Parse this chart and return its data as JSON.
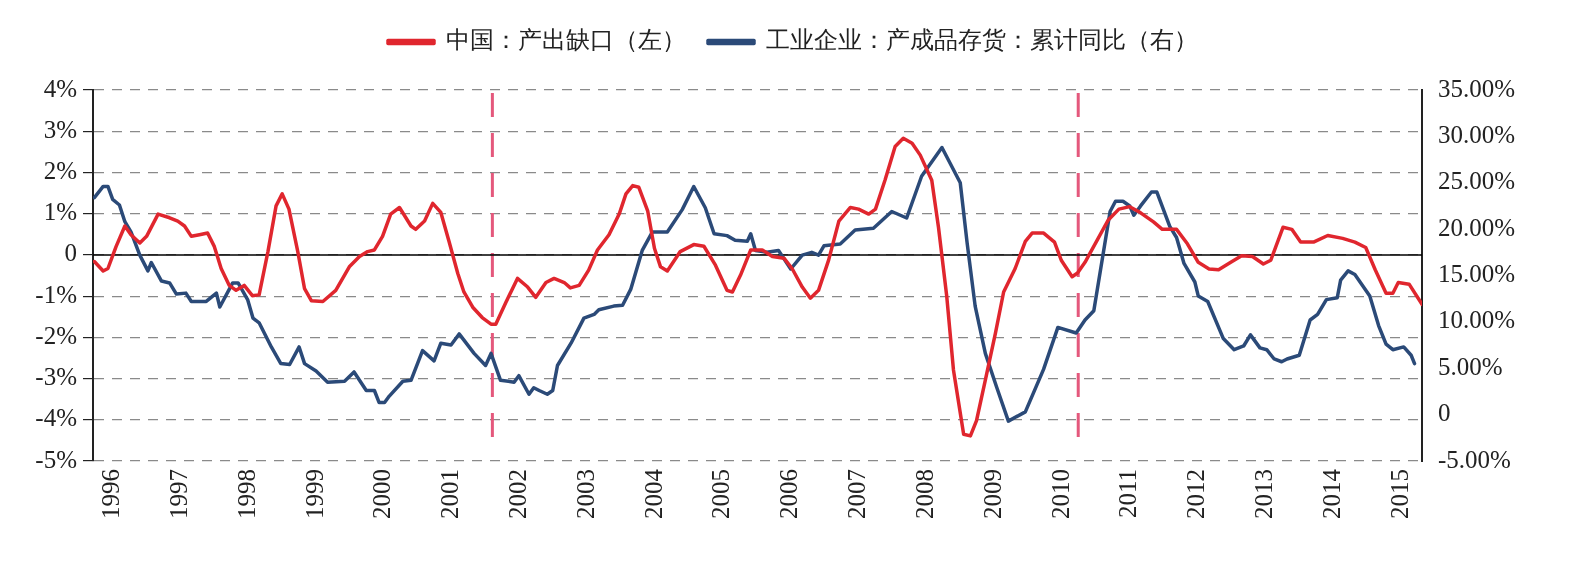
{
  "chart_data": {
    "type": "line",
    "legend": "top",
    "grid": "y",
    "marker": "none",
    "line_style": "solid",
    "xlim": [
      1995.71,
      2015.31
    ],
    "xticks": [
      1996,
      1997,
      1998,
      1999,
      2000,
      2001,
      2002,
      2003,
      2004,
      2005,
      2006,
      2007,
      2008,
      2009,
      2010,
      2011,
      2012,
      2013,
      2014,
      2015
    ],
    "ylim": [
      -5,
      4
    ],
    "yticks": [
      {
        "value": -5,
        "label": "-5%"
      },
      {
        "value": -4,
        "label": "-4%"
      },
      {
        "value": -3,
        "label": "-3%"
      },
      {
        "value": -2,
        "label": "-2%"
      },
      {
        "value": -1,
        "label": "-1%"
      },
      0,
      {
        "value": 1,
        "label": "1%"
      },
      {
        "value": 2,
        "label": "2%"
      },
      {
        "value": 3,
        "label": "3%"
      },
      {
        "value": 4,
        "label": "4%"
      }
    ],
    "y2lim": [
      -5,
      35
    ],
    "y2ticks": [
      {
        "value": -5,
        "label": "-5.00%"
      },
      0,
      {
        "value": 5,
        "label": "5.00%"
      },
      {
        "value": 10,
        "label": "10.00%"
      },
      {
        "value": 15,
        "label": "15.00%"
      },
      {
        "value": 20,
        "label": "20.00%"
      },
      {
        "value": 25,
        "label": "25.00%"
      },
      {
        "value": 30,
        "label": "30.00%"
      },
      {
        "value": 35,
        "label": "35.00%"
      }
    ],
    "ref_lines": [
      {
        "axis": "x",
        "value": 2001.6,
        "color": "#e4587c",
        "line_style": "dashed"
      },
      {
        "axis": "x",
        "value": 2010.24,
        "color": "#e4587c",
        "line_style": "dashed"
      },
      {
        "axis": "y",
        "value": 0,
        "color": "#000000",
        "line_style": "solid"
      }
    ],
    "series": [
      {
        "name": "中国：产出缺口（左）",
        "color": "#e0262e",
        "x": [
          1995.73,
          1995.86,
          1995.93,
          1996.05,
          1996.18,
          1996.27,
          1996.4,
          1996.5,
          1996.67,
          1996.84,
          1996.96,
          1997.06,
          1997.16,
          1997.28,
          1997.4,
          1997.5,
          1997.6,
          1997.72,
          1997.82,
          1997.94,
          1998.06,
          1998.16,
          1998.29,
          1998.41,
          1998.5,
          1998.6,
          1998.73,
          1998.83,
          1998.93,
          1999.1,
          1999.29,
          1999.49,
          1999.64,
          1999.76,
          1999.86,
          1999.98,
          2000.1,
          2000.23,
          2000.4,
          2000.47,
          2000.6,
          2000.72,
          2000.84,
          2000.96,
          2001.09,
          2001.18,
          2001.31,
          2001.45,
          2001.58,
          2001.65,
          2001.8,
          2001.97,
          2002.12,
          2002.24,
          2002.39,
          2002.51,
          2002.66,
          2002.75,
          2002.88,
          2003.02,
          2003.15,
          2003.32,
          2003.47,
          2003.57,
          2003.67,
          2003.76,
          2003.89,
          2003.99,
          2004.08,
          2004.18,
          2004.37,
          2004.57,
          2004.72,
          2004.89,
          2005.06,
          2005.14,
          2005.26,
          2005.41,
          2005.58,
          2005.73,
          2005.9,
          2006.02,
          2006.17,
          2006.29,
          2006.41,
          2006.56,
          2006.71,
          2006.88,
          2007.0,
          2007.15,
          2007.25,
          2007.39,
          2007.54,
          2007.66,
          2007.79,
          2007.91,
          2008.08,
          2008.18,
          2008.3,
          2008.4,
          2008.55,
          2008.65,
          2008.74,
          2008.87,
          2009.02,
          2009.14,
          2009.31,
          2009.46,
          2009.56,
          2009.73,
          2009.89,
          2009.99,
          2010.15,
          2010.23,
          2010.34,
          2010.52,
          2010.68,
          2010.84,
          2011.0,
          2011.16,
          2011.35,
          2011.48,
          2011.69,
          2011.85,
          2012.01,
          2012.17,
          2012.31,
          2012.49,
          2012.65,
          2012.81,
          2012.97,
          2013.08,
          2013.26,
          2013.39,
          2013.52,
          2013.71,
          2013.92,
          2014.14,
          2014.32,
          2014.48,
          2014.62,
          2014.78,
          2014.88,
          2014.96,
          2015.12,
          2015.31
        ],
        "values": [
          -0.16,
          -0.39,
          -0.33,
          0.2,
          0.7,
          0.49,
          0.29,
          0.45,
          0.99,
          0.9,
          0.82,
          0.7,
          0.45,
          0.49,
          0.53,
          0.2,
          -0.33,
          -0.74,
          -0.86,
          -0.74,
          -0.99,
          -0.97,
          0.08,
          1.19,
          1.48,
          1.11,
          0.08,
          -0.82,
          -1.11,
          -1.13,
          -0.86,
          -0.29,
          -0.04,
          0.08,
          0.12,
          0.45,
          0.99,
          1.15,
          0.7,
          0.62,
          0.82,
          1.25,
          1.03,
          0.33,
          -0.45,
          -0.9,
          -1.27,
          -1.52,
          -1.68,
          -1.68,
          -1.15,
          -0.57,
          -0.78,
          -1.03,
          -0.67,
          -0.57,
          -0.67,
          -0.8,
          -0.74,
          -0.37,
          0.12,
          0.49,
          0.99,
          1.48,
          1.68,
          1.64,
          1.07,
          0.16,
          -0.29,
          -0.39,
          0.08,
          0.25,
          0.21,
          -0.25,
          -0.86,
          -0.9,
          -0.49,
          0.12,
          0.12,
          -0.04,
          -0.08,
          -0.33,
          -0.78,
          -1.05,
          -0.86,
          -0.12,
          0.82,
          1.15,
          1.11,
          0.99,
          1.11,
          1.81,
          2.63,
          2.83,
          2.71,
          2.42,
          1.81,
          0.66,
          -0.99,
          -2.79,
          -4.35,
          -4.39,
          -4.02,
          -3.04,
          -1.89,
          -0.9,
          -0.33,
          0.33,
          0.53,
          0.53,
          0.31,
          -0.13,
          -0.53,
          -0.44,
          -0.18,
          0.36,
          0.84,
          1.11,
          1.17,
          1.02,
          0.8,
          0.62,
          0.62,
          0.27,
          -0.18,
          -0.34,
          -0.36,
          -0.18,
          -0.02,
          -0.04,
          -0.22,
          -0.13,
          0.67,
          0.62,
          0.31,
          0.31,
          0.47,
          0.4,
          0.31,
          0.18,
          -0.36,
          -0.93,
          -0.93,
          -0.67,
          -0.71,
          -1.2
        ]
      },
      {
        "name": "工业企业：产成品存货：累计同比（右）",
        "color": "#2b4a78",
        "axis": "y2",
        "x": [
          1995.73,
          1995.86,
          1995.93,
          1996.0,
          1996.1,
          1996.18,
          1996.27,
          1996.4,
          1996.52,
          1996.57,
          1996.72,
          1996.84,
          1996.94,
          1997.08,
          1997.16,
          1997.38,
          1997.53,
          1997.58,
          1997.77,
          1997.85,
          1997.99,
          1998.07,
          1998.16,
          1998.34,
          1998.48,
          1998.61,
          1998.75,
          1998.83,
          1999.0,
          1999.17,
          1999.42,
          1999.56,
          1999.74,
          1999.86,
          1999.93,
          2000.01,
          2000.08,
          2000.28,
          2000.4,
          2000.57,
          2000.74,
          2000.84,
          2000.99,
          2001.11,
          2001.33,
          2001.5,
          2001.58,
          2001.72,
          2001.92,
          2001.99,
          2002.14,
          2002.21,
          2002.29,
          2002.41,
          2002.49,
          2002.56,
          2002.76,
          2002.95,
          2003.1,
          2003.17,
          2003.39,
          2003.52,
          2003.64,
          2003.81,
          2003.96,
          2004.18,
          2004.4,
          2004.57,
          2004.74,
          2004.87,
          2005.06,
          2005.18,
          2005.36,
          2005.41,
          2005.48,
          2005.65,
          2005.82,
          2006.0,
          2006.17,
          2006.31,
          2006.41,
          2006.49,
          2006.73,
          2006.95,
          2007.22,
          2007.49,
          2007.71,
          2007.93,
          2008.23,
          2008.5,
          2008.6,
          2008.72,
          2008.87,
          2009.04,
          2009.21,
          2009.46,
          2009.73,
          2009.94,
          2010.21,
          2010.34,
          2010.47,
          2010.71,
          2010.79,
          2010.9,
          2011.0,
          2011.06,
          2011.16,
          2011.32,
          2011.4,
          2011.59,
          2011.69,
          2011.8,
          2011.96,
          2012.01,
          2012.15,
          2012.38,
          2012.54,
          2012.68,
          2012.78,
          2012.92,
          2013.02,
          2013.13,
          2013.24,
          2013.32,
          2013.5,
          2013.66,
          2013.77,
          2013.9,
          2014.06,
          2014.11,
          2014.22,
          2014.32,
          2014.54,
          2014.67,
          2014.78,
          2014.88,
          2015.04,
          2015.15,
          2015.2
        ],
        "values": [
          23.4,
          24.6,
          24.6,
          23.2,
          22.6,
          20.8,
          19.7,
          17.2,
          15.5,
          16.4,
          14.4,
          14.2,
          13.0,
          13.1,
          12.2,
          12.2,
          13.1,
          11.6,
          14.2,
          14.2,
          12.4,
          10.4,
          9.9,
          7.3,
          5.5,
          5.4,
          7.3,
          5.5,
          4.7,
          3.5,
          3.6,
          4.6,
          2.6,
          2.6,
          1.3,
          1.3,
          2.0,
          3.6,
          3.7,
          6.9,
          5.8,
          7.7,
          7.5,
          8.7,
          6.6,
          5.3,
          6.6,
          3.7,
          3.5,
          4.2,
          2.2,
          2.9,
          2.6,
          2.2,
          2.6,
          5.3,
          7.7,
          10.4,
          10.8,
          11.3,
          11.7,
          11.8,
          13.5,
          17.7,
          19.7,
          19.7,
          22.1,
          24.6,
          22.3,
          19.5,
          19.3,
          18.8,
          18.7,
          19.5,
          17.7,
          17.5,
          17.7,
          15.7,
          17.2,
          17.5,
          17.2,
          18.2,
          18.4,
          19.9,
          20.1,
          21.9,
          21.2,
          25.7,
          28.8,
          25.0,
          18.6,
          11.7,
          6.6,
          2.9,
          -0.7,
          0.3,
          4.9,
          9.4,
          8.8,
          10.2,
          11.2,
          21.9,
          23.0,
          23.0,
          22.5,
          21.5,
          22.5,
          24.0,
          24.0,
          20.3,
          19.1,
          16.3,
          14.3,
          12.8,
          12.2,
          8.2,
          7.0,
          7.4,
          8.6,
          7.2,
          7.0,
          6.0,
          5.7,
          6.0,
          6.4,
          10.2,
          10.8,
          12.4,
          12.6,
          14.5,
          15.5,
          15.1,
          12.8,
          9.6,
          7.6,
          7.0,
          7.3,
          6.4,
          5.5
        ]
      }
    ]
  }
}
